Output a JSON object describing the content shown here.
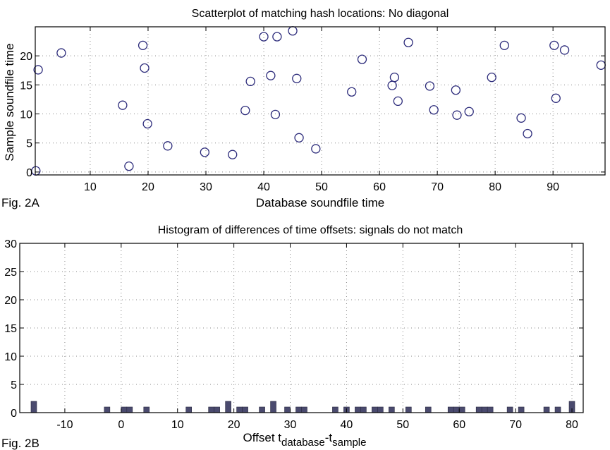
{
  "chart_data": [
    {
      "type": "scatter",
      "title": "Scatterplot of matching hash locations:  No diagonal",
      "xlabel": "Database soundfile time",
      "ylabel": "Sample soundfile time",
      "figure_label": "Fig. 2A",
      "xlim": [
        0.5,
        99
      ],
      "ylim": [
        -0.5,
        25
      ],
      "xticks": [
        10,
        20,
        30,
        40,
        50,
        60,
        70,
        80,
        90
      ],
      "yticks": [
        0,
        5,
        10,
        15,
        20
      ],
      "grid": true,
      "marker_color": "#2b2a7a",
      "points": [
        [
          0.6,
          0.2
        ],
        [
          1,
          17.6
        ],
        [
          5,
          20.5
        ],
        [
          15.6,
          11.5
        ],
        [
          16.7,
          1
        ],
        [
          19.1,
          21.8
        ],
        [
          19.4,
          17.9
        ],
        [
          19.9,
          8.3
        ],
        [
          23.4,
          4.5
        ],
        [
          29.8,
          3.4
        ],
        [
          34.6,
          3.0
        ],
        [
          36.8,
          10.6
        ],
        [
          37.7,
          15.6
        ],
        [
          40,
          23.3
        ],
        [
          41.2,
          16.6
        ],
        [
          42,
          9.9
        ],
        [
          42.3,
          23.3
        ],
        [
          45,
          24.3
        ],
        [
          45.7,
          16.1
        ],
        [
          46.1,
          5.9
        ],
        [
          49,
          4
        ],
        [
          55.2,
          13.8
        ],
        [
          57,
          19.4
        ],
        [
          65,
          22.3
        ],
        [
          62.2,
          14.9
        ],
        [
          62.6,
          16.3
        ],
        [
          63.2,
          12.2
        ],
        [
          68.7,
          14.8
        ],
        [
          69.4,
          10.7
        ],
        [
          73.2,
          14.1
        ],
        [
          73.4,
          9.8
        ],
        [
          75.5,
          10.4
        ],
        [
          79.4,
          16.3
        ],
        [
          81.6,
          21.8
        ],
        [
          84.5,
          9.3
        ],
        [
          85.6,
          6.6
        ],
        [
          90.2,
          21.8
        ],
        [
          90.5,
          12.7
        ],
        [
          92,
          21
        ],
        [
          98.3,
          18.4
        ]
      ]
    },
    {
      "type": "bar",
      "title": "Histogram of differences of time offsets: signals do not match",
      "xlabel_parts": [
        "Offset t",
        "database",
        "-t",
        "sample"
      ],
      "ylabel": "",
      "figure_label": "Fig. 2B",
      "xlim": [
        -18,
        82
      ],
      "ylim": [
        0,
        30
      ],
      "xticks": [
        -10,
        0,
        10,
        20,
        30,
        40,
        50,
        60,
        70,
        80
      ],
      "yticks": [
        0,
        5,
        10,
        15,
        20,
        25,
        30
      ],
      "grid": true,
      "bar_color": "#4a4a6e",
      "bin_width": 1,
      "bins": [
        -15.5,
        -2.5,
        0.5,
        1.5,
        4.5,
        12,
        16,
        17,
        19,
        21,
        22,
        25,
        27,
        29.5,
        31.5,
        32.5,
        38,
        40,
        42,
        43,
        45,
        46,
        48,
        51,
        54.5,
        58.5,
        59.5,
        60.5,
        63.5,
        64.5,
        65.5,
        69,
        71,
        75.5,
        77.5,
        80
      ],
      "counts": [
        2,
        1,
        1,
        1,
        1,
        1,
        1,
        1,
        2,
        1,
        1,
        1,
        2,
        1,
        1,
        1,
        1,
        1,
        1,
        1,
        1,
        1,
        1,
        1,
        1,
        1,
        1,
        1,
        1,
        1,
        1,
        1,
        1,
        1,
        1,
        2
      ]
    }
  ]
}
